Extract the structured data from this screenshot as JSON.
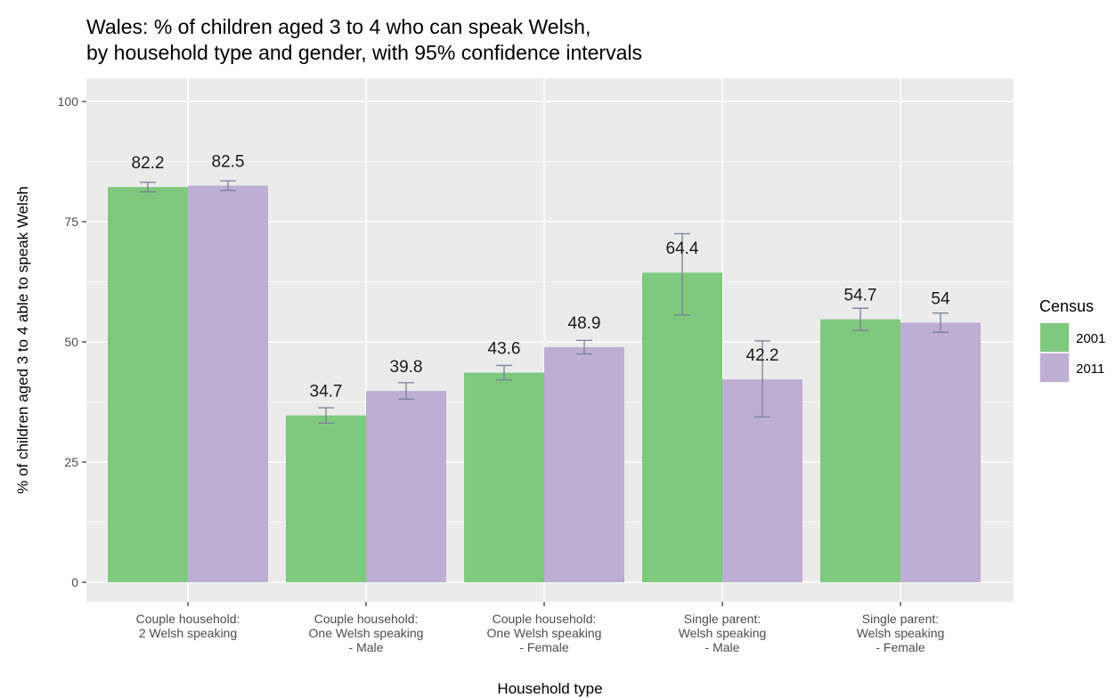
{
  "chart_data": {
    "type": "bar",
    "title_lines": [
      "Wales: % of children aged 3 to 4 who can speak Welsh,",
      "by household type and gender, with 95% confidence intervals"
    ],
    "xlabel": "Household type",
    "ylabel": "% of children aged 3 to 4 able to speak Welsh",
    "ylim": [
      0,
      100
    ],
    "yticks": [
      "0",
      "25",
      "50",
      "75",
      "100"
    ],
    "ytick_values": [
      0,
      25,
      50,
      75,
      100
    ],
    "categories": [
      [
        "Couple household:",
        "2 Welsh speaking"
      ],
      [
        "Couple household:",
        "One Welsh speaking",
        "- Male"
      ],
      [
        "Couple household:",
        "One Welsh speaking",
        "- Female"
      ],
      [
        "Single parent:",
        "Welsh speaking",
        "- Male"
      ],
      [
        "Single parent:",
        "Welsh speaking",
        "- Female"
      ]
    ],
    "series": [
      {
        "name": "2001",
        "color": "#7fc97f",
        "values": [
          82.2,
          34.7,
          43.6,
          64.4,
          54.7
        ],
        "labels": [
          "82.2",
          "34.7",
          "43.6",
          "64.4",
          "54.7"
        ],
        "ci_low": [
          81.2,
          33.1,
          42.1,
          55.6,
          52.4
        ],
        "ci_high": [
          83.2,
          36.3,
          45.1,
          72.5,
          57.0
        ]
      },
      {
        "name": "2011",
        "color": "#beaed4",
        "values": [
          82.5,
          39.8,
          48.9,
          42.2,
          54.0
        ],
        "labels": [
          "82.5",
          "39.8",
          "48.9",
          "42.2",
          "54"
        ],
        "ci_low": [
          81.5,
          38.1,
          47.5,
          34.4,
          52.0
        ],
        "ci_high": [
          83.5,
          41.5,
          50.3,
          50.2,
          56.0
        ]
      }
    ],
    "legend": {
      "title": "Census",
      "position": "right"
    },
    "grid": true,
    "error_bar_color": "#7a7f99"
  }
}
